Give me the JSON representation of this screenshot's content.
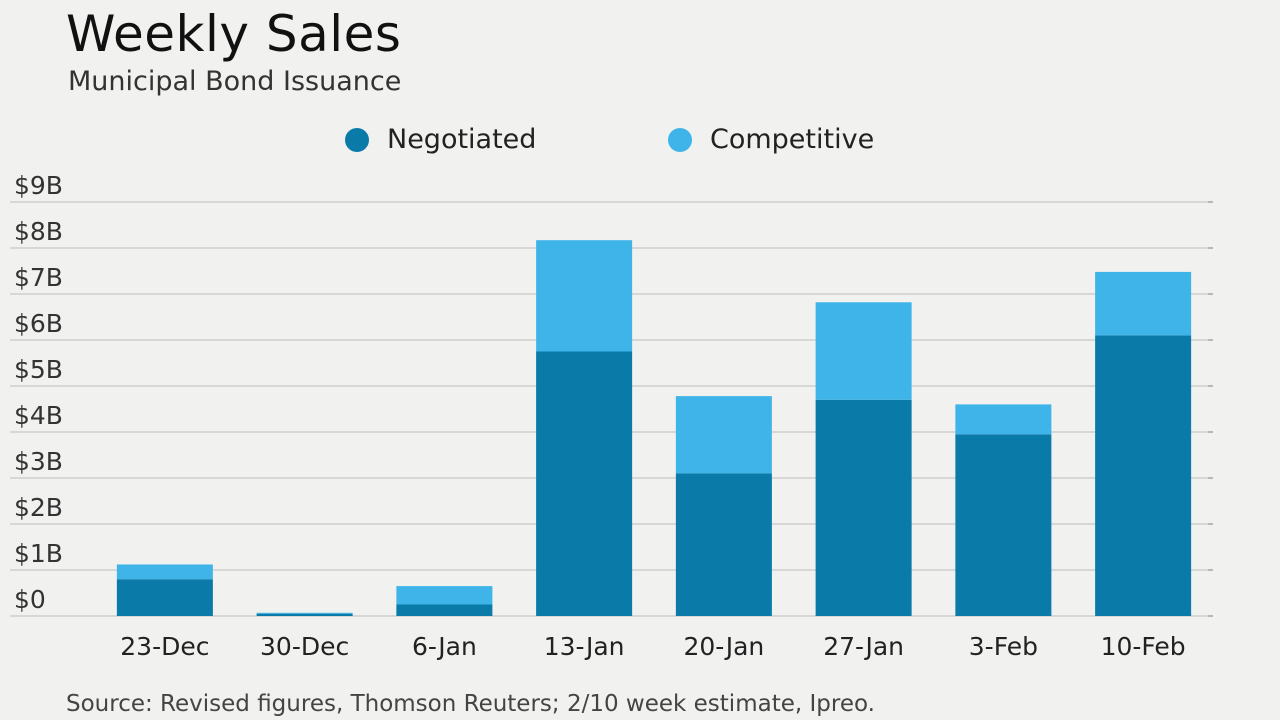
{
  "header": {
    "title": "Weekly Sales",
    "subtitle": "Municipal Bond Issuance"
  },
  "colors": {
    "negotiated": "#0a7aa8",
    "competitive": "#3fb4e8",
    "grid": "#c8c8c8",
    "background": "#f1f1f0"
  },
  "chart_data": {
    "type": "bar",
    "stacked": true,
    "categories": [
      "23-Dec",
      "30-Dec",
      "6-Jan",
      "13-Jan",
      "20-Jan",
      "27-Jan",
      "3-Feb",
      "10-Feb"
    ],
    "series": [
      {
        "name": "Negotiated",
        "values": [
          0.8,
          0.05,
          0.25,
          5.75,
          3.1,
          4.7,
          3.95,
          6.1
        ]
      },
      {
        "name": "Competitive",
        "values": [
          0.32,
          0.02,
          0.4,
          2.42,
          1.68,
          2.12,
          0.65,
          1.38
        ]
      }
    ],
    "yticks": [
      "$0",
      "$1B",
      "$2B",
      "$3B",
      "$4B",
      "$5B",
      "$6B",
      "$7B",
      "$8B",
      "$9B"
    ],
    "ylim": [
      0,
      9
    ],
    "grid": true,
    "legend_position": "top-center"
  },
  "footer": {
    "source": "Source: Revised figures, Thomson Reuters; 2/10 week estimate, Ipreo."
  }
}
